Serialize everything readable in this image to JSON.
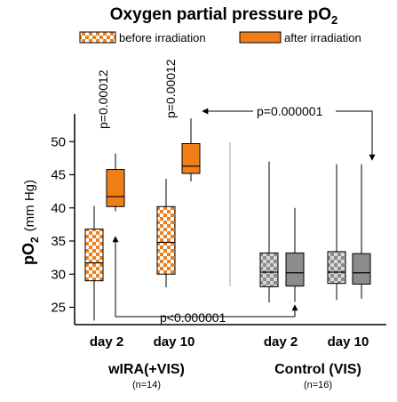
{
  "chart_data": {
    "type": "boxplot",
    "title_main": "Oxygen partial pressure pO",
    "title_sub": "2",
    "ylabel_main": "pO",
    "ylabel_sub": "2",
    "ylabel_unit": "(mm Hg)",
    "ylim": [
      22,
      57
    ],
    "yticks": [
      "25",
      "30",
      "35",
      "40",
      "45",
      "50"
    ],
    "legend": [
      {
        "label": "before irradiation",
        "pattern": "checker-orange"
      },
      {
        "label": "after irradiation",
        "pattern": "solid-orange"
      }
    ],
    "groups": [
      {
        "label": "wIRA(+VIS)",
        "n_label": "(n=14)"
      },
      {
        "label": "Control (VIS)",
        "n_label": "(n=16)"
      }
    ],
    "day_labels": [
      "day 2",
      "day 10",
      "day 2",
      "day 10"
    ],
    "boxes": [
      {
        "group": 0,
        "day": 0,
        "phase": "before",
        "min": 23,
        "q1": 29,
        "median": 31.7,
        "q3": 36.8,
        "max": 40.3
      },
      {
        "group": 0,
        "day": 0,
        "phase": "after",
        "min": 39.5,
        "q1": 40.2,
        "median": 41.7,
        "q3": 45.8,
        "max": 48.2
      },
      {
        "group": 0,
        "day": 1,
        "phase": "before",
        "min": 28,
        "q1": 30,
        "median": 34.8,
        "q3": 40.2,
        "max": 44.4
      },
      {
        "group": 0,
        "day": 1,
        "phase": "after",
        "min": 44,
        "q1": 45.2,
        "median": 46.3,
        "q3": 49.7,
        "max": 53.5
      },
      {
        "group": 1,
        "day": 0,
        "phase": "before",
        "min": 25.7,
        "q1": 28.1,
        "median": 30.3,
        "q3": 33.2,
        "max": 47
      },
      {
        "group": 1,
        "day": 0,
        "phase": "after",
        "min": 25.8,
        "q1": 28.2,
        "median": 30.2,
        "q3": 33.2,
        "max": 40
      },
      {
        "group": 1,
        "day": 1,
        "phase": "before",
        "min": 26.1,
        "q1": 28.6,
        "median": 30.3,
        "q3": 33.4,
        "max": 46.6
      },
      {
        "group": 1,
        "day": 1,
        "phase": "after",
        "min": 26.3,
        "q1": 28.5,
        "median": 30.2,
        "q3": 33.1,
        "max": 46.6
      }
    ],
    "pvalues": [
      {
        "label": "p=0.00012",
        "context": "wIRA day 2, before vs after"
      },
      {
        "label": "p=0.00012",
        "context": "wIRA day 10, before vs after"
      },
      {
        "label": "p<0.000001",
        "context": "wIRA vs Control, day 2 after"
      },
      {
        "label": "p=0.000001",
        "context": "wIRA vs Control, day 10 after"
      }
    ],
    "colors": {
      "orange": "#f07f1a",
      "checker_light": "#ffffff",
      "grey": "#8c8c8c",
      "grey_light": "#d8d8d8",
      "axis": "#000000",
      "divider": "#b4b4b4"
    }
  }
}
